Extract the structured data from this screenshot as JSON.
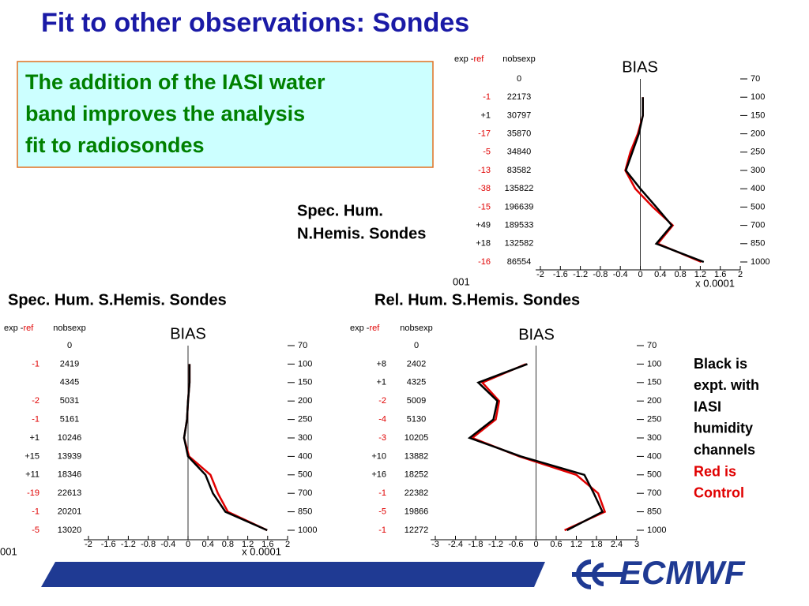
{
  "title": "Fit to other observations: Sondes",
  "callout": {
    "lines": [
      "The addition of the IASI water",
      "band improves the analysis",
      "fit to radiosondes"
    ]
  },
  "note": {
    "black_lines": [
      "Black is",
      "expt. with",
      "IASI",
      "humidity",
      "channels"
    ],
    "red_lines": [
      "Red is",
      "Control"
    ]
  },
  "overlap_fragments": [
    "001",
    "001"
  ],
  "logo": "ECMWF",
  "chart_data": [
    {
      "type": "line",
      "title": "BIAS",
      "caption": [
        "Spec. Hum.",
        "N.Hemis. Sondes"
      ],
      "categories": [
        "70",
        "100",
        "150",
        "200",
        "250",
        "300",
        "400",
        "500",
        "700",
        "850",
        "1000"
      ],
      "table": {
        "header_exp": "exp -",
        "header_ref": "ref",
        "header_nobs": "nobsexp",
        "exp_minus_ref": [
          null,
          "-1",
          "+1",
          "-17",
          "-5",
          "-13",
          "-38",
          "-15",
          "+49",
          "+18",
          "-16"
        ],
        "nobsexp": [
          0,
          22173,
          30797,
          35870,
          34840,
          83582,
          135822,
          196639,
          189533,
          132582,
          86554
        ]
      },
      "xlim": [
        -2,
        2
      ],
      "xticks": [
        -2,
        -1.6,
        -1.2,
        -0.8,
        -0.4,
        0,
        0.4,
        0.8,
        1.2,
        1.6,
        2
      ],
      "xlabel": "x 0.0001",
      "series": [
        {
          "color": "#000000",
          "values": [
            null,
            0.05,
            0.05,
            -0.03,
            -0.16,
            -0.29,
            0,
            0.32,
            0.63,
            0.32,
            1.27
          ]
        },
        {
          "color": "#e00000",
          "values": [
            null,
            0.05,
            0.05,
            -0.05,
            -0.2,
            -0.3,
            -0.1,
            0.25,
            0.65,
            0.35,
            1.22
          ]
        }
      ]
    },
    {
      "type": "line",
      "title": "BIAS",
      "caption": [
        "Spec. Hum. S.Hemis. Sondes"
      ],
      "categories": [
        "70",
        "100",
        "150",
        "200",
        "250",
        "300",
        "400",
        "500",
        "700",
        "850",
        "1000"
      ],
      "table": {
        "header_exp": "exp -",
        "header_ref": "ref",
        "header_nobs": "nobsexp",
        "exp_minus_ref": [
          null,
          "-1",
          null,
          "-2",
          "-1",
          "+1",
          "+15",
          "+11",
          "-19",
          "-1",
          "-5"
        ],
        "nobsexp": [
          0,
          2419,
          4345,
          5031,
          5161,
          10246,
          13939,
          18346,
          22613,
          20201,
          13020
        ]
      },
      "xlim": [
        -2,
        2
      ],
      "xticks": [
        -2,
        -1.6,
        -1.2,
        -0.8,
        -0.4,
        0,
        0.4,
        0.8,
        1.2,
        1.6,
        2
      ],
      "xlabel": "x 0.0001",
      "series": [
        {
          "color": "#000000",
          "values": [
            null,
            0.03,
            0.03,
            0,
            -0.02,
            -0.08,
            0,
            0.35,
            0.5,
            0.75,
            1.59
          ]
        },
        {
          "color": "#e00000",
          "values": [
            null,
            0.03,
            0.03,
            0,
            -0.02,
            -0.08,
            0.02,
            0.45,
            0.6,
            0.8,
            1.59
          ]
        }
      ]
    },
    {
      "type": "line",
      "title": "BIAS",
      "caption": [
        "Rel. Hum. S.Hemis. Sondes"
      ],
      "categories": [
        "70",
        "100",
        "150",
        "200",
        "250",
        "300",
        "400",
        "500",
        "700",
        "850",
        "1000"
      ],
      "table": {
        "header_exp": "exp -",
        "header_ref": "ref",
        "header_nobs": "nobsexp",
        "exp_minus_ref": [
          null,
          "+8",
          "+1",
          "-2",
          "-4",
          "-3",
          "+10",
          "+16",
          "-1",
          "-5",
          "-1"
        ],
        "nobsexp": [
          0,
          2402,
          4325,
          5009,
          5130,
          10205,
          13882,
          18252,
          22382,
          19866,
          12272
        ]
      },
      "xlim": [
        -3,
        3
      ],
      "xticks": [
        -3,
        -2.4,
        -1.8,
        -1.2,
        -0.6,
        0,
        0.6,
        1.2,
        1.8,
        2.4,
        3
      ],
      "series": [
        {
          "color": "#000000",
          "values": [
            null,
            -0.26,
            -1.72,
            -1.15,
            -1.27,
            -1.98,
            -0.45,
            1.44,
            1.72,
            1.98,
            0.92
          ]
        },
        {
          "color": "#e00000",
          "values": [
            null,
            -0.3,
            -1.6,
            -1.1,
            -1.2,
            -1.9,
            -0.5,
            1.2,
            1.85,
            2.05,
            0.85
          ]
        }
      ]
    }
  ]
}
